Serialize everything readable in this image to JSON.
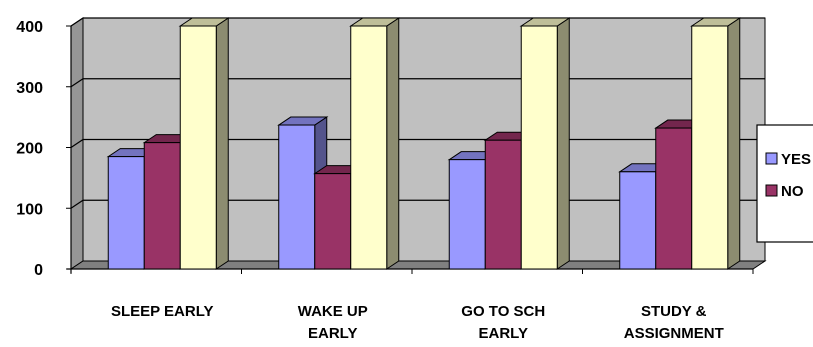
{
  "chart_data": {
    "type": "bar",
    "style": "3d-clustered-column",
    "categories": [
      [
        "SLEEP EARLY"
      ],
      [
        "WAKE UP",
        "EARLY"
      ],
      [
        "GO TO SCH",
        "EARLY"
      ],
      [
        "STUDY &",
        "ASSIGNMENT"
      ]
    ],
    "series": [
      {
        "name": "YES",
        "values": [
          185,
          237,
          180,
          160
        ],
        "color": "#9999FF"
      },
      {
        "name": "NO",
        "values": [
          208,
          157,
          212,
          232
        ],
        "color": "#993366"
      },
      {
        "values": [
          400,
          400,
          400,
          400
        ],
        "color": "#FFFFCC"
      }
    ],
    "y_ticks": [
      0,
      100,
      200,
      300,
      400
    ],
    "ylim": [
      0,
      400
    ],
    "grid": true,
    "legend_position": "right",
    "legend_labels": [
      "YES",
      "NO"
    ],
    "wall_color": "#C0C0C0",
    "floor_color": "#808080"
  }
}
